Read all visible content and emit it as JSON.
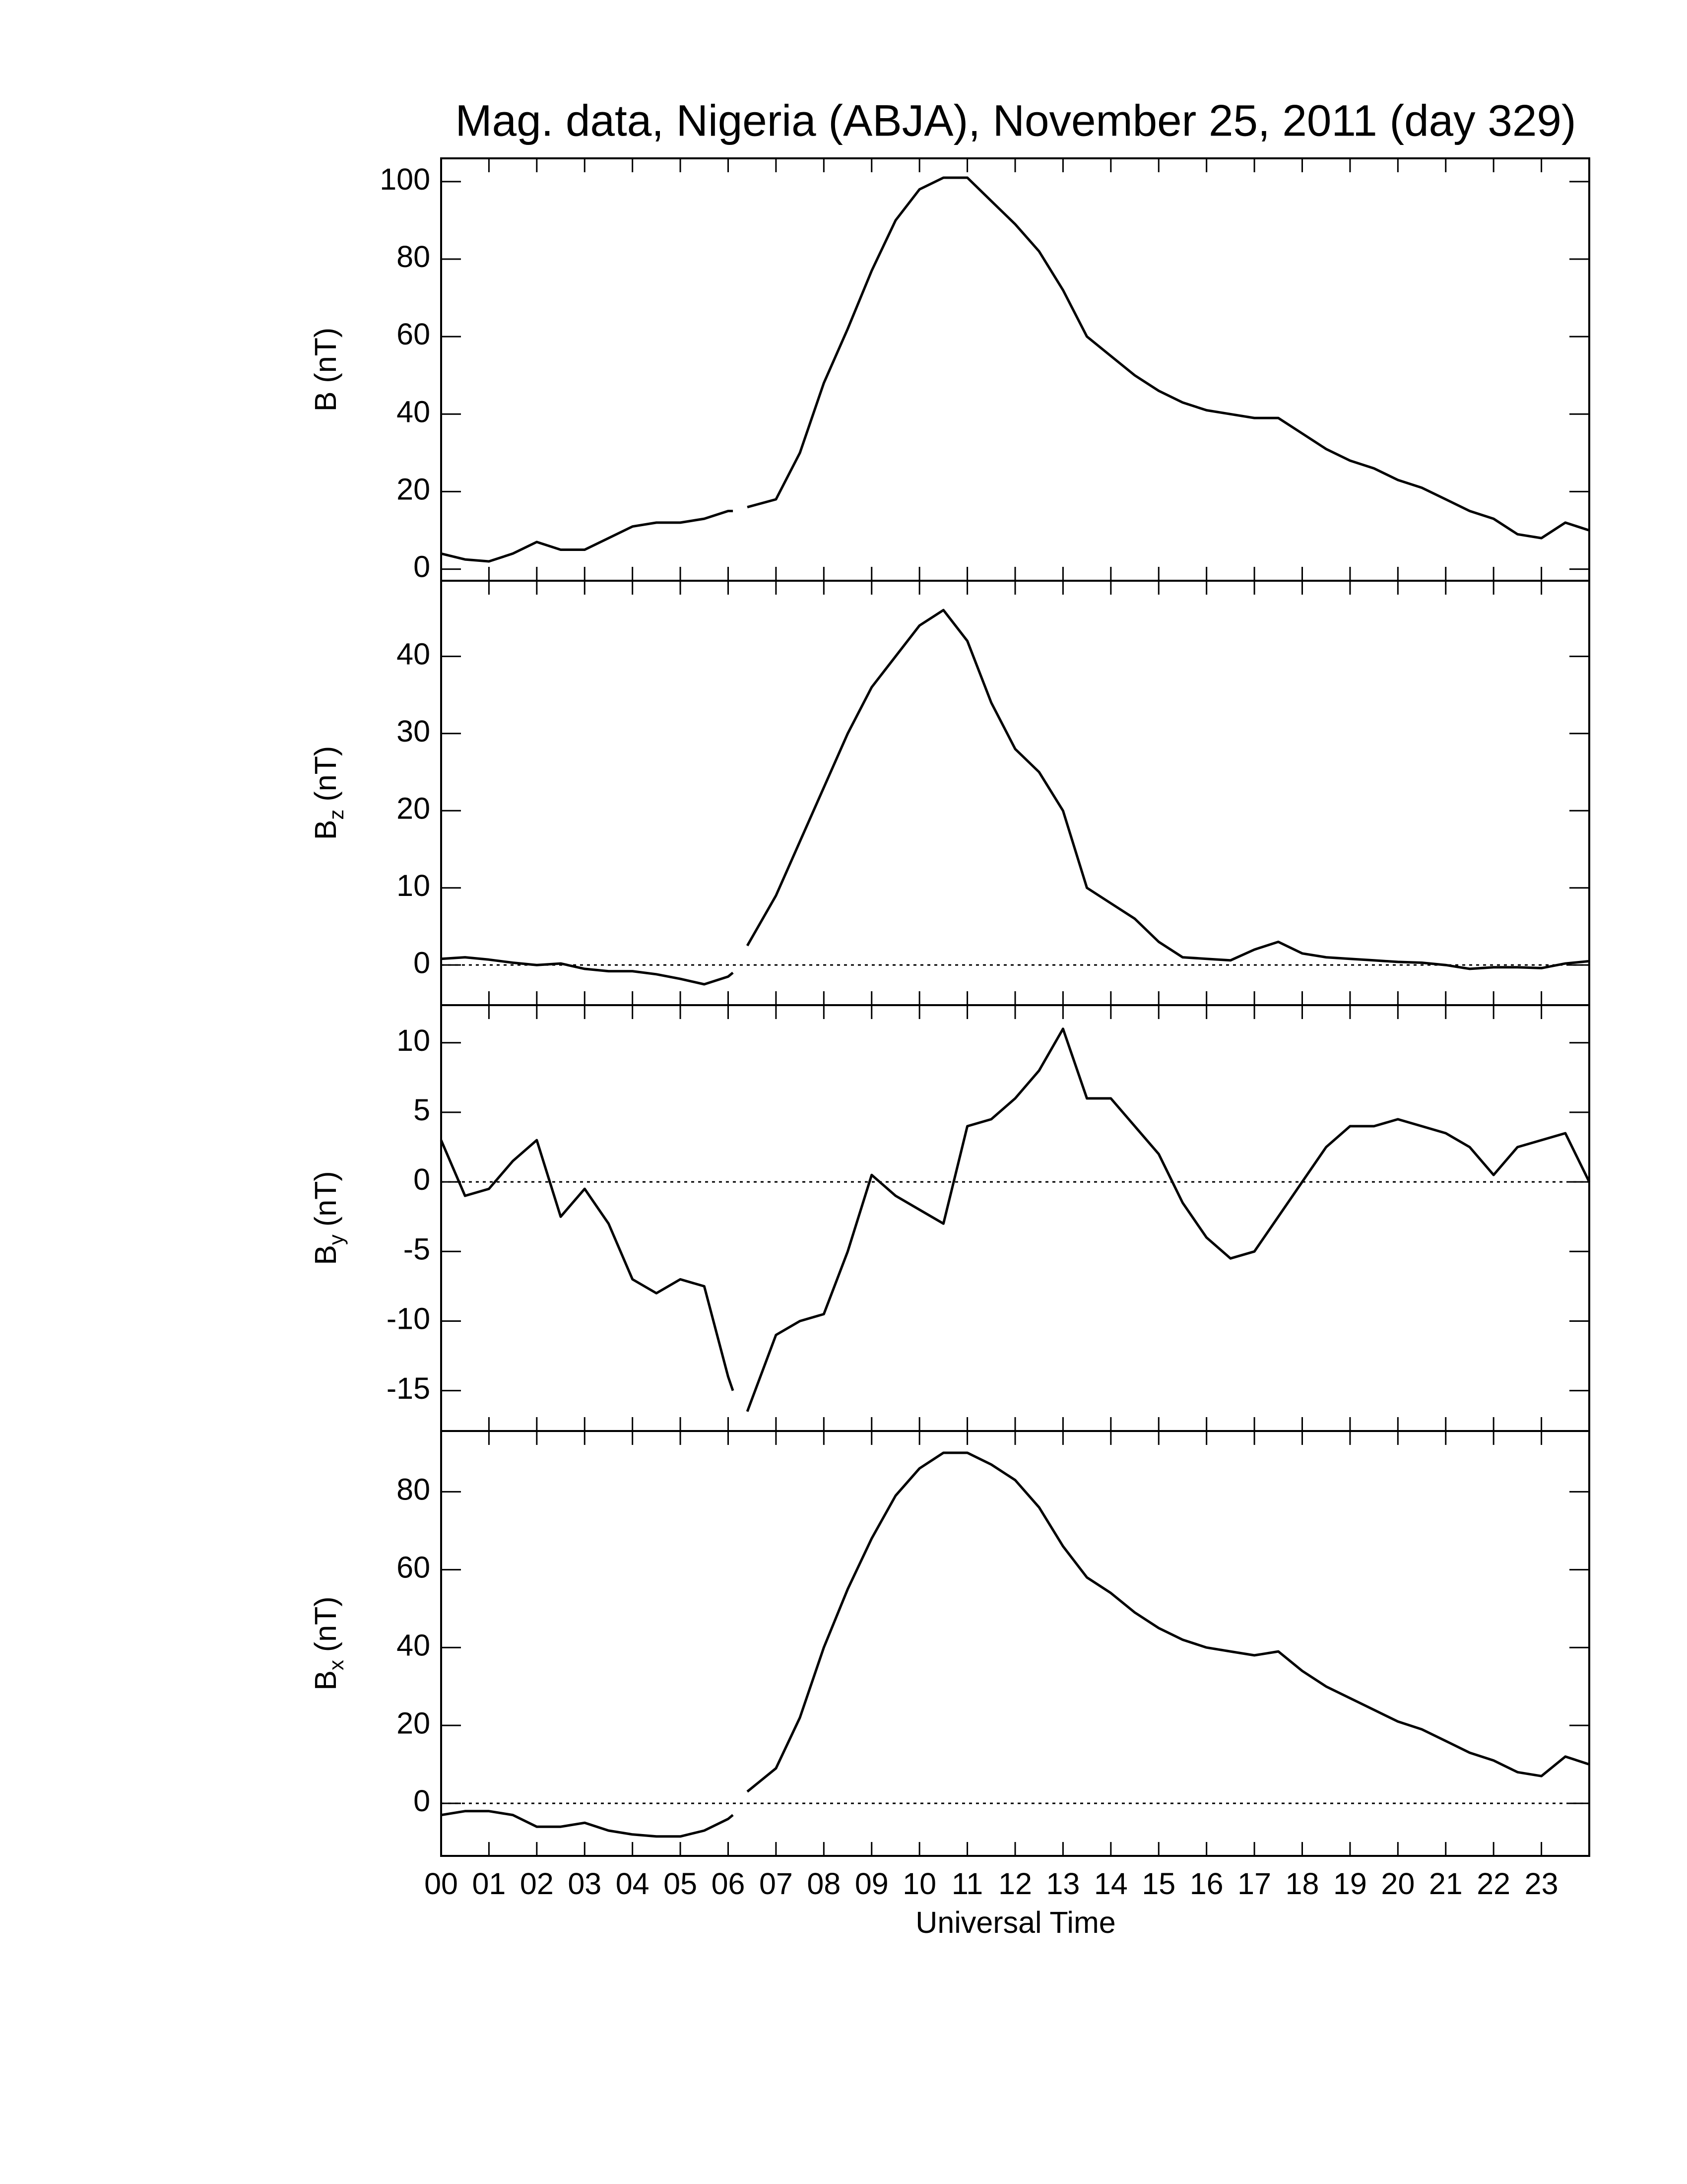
{
  "chart_data": {
    "title": "Mag. data, Nigeria (ABJA), November 25, 2011 (day 329)",
    "xlabel": "Universal Time",
    "xlim": [
      0,
      24
    ],
    "xticks": [
      {
        "value": 0,
        "label": "00"
      },
      {
        "value": 1,
        "label": "01"
      },
      {
        "value": 2,
        "label": "02"
      },
      {
        "value": 3,
        "label": "03"
      },
      {
        "value": 4,
        "label": "04"
      },
      {
        "value": 5,
        "label": "05"
      },
      {
        "value": 6,
        "label": "06"
      },
      {
        "value": 7,
        "label": "07"
      },
      {
        "value": 8,
        "label": "08"
      },
      {
        "value": 9,
        "label": "09"
      },
      {
        "value": 10,
        "label": "10"
      },
      {
        "value": 11,
        "label": "11"
      },
      {
        "value": 12,
        "label": "12"
      },
      {
        "value": 13,
        "label": "13"
      },
      {
        "value": 14,
        "label": "14"
      },
      {
        "value": 15,
        "label": "15"
      },
      {
        "value": 16,
        "label": "16"
      },
      {
        "value": 17,
        "label": "17"
      },
      {
        "value": 18,
        "label": "18"
      },
      {
        "value": 19,
        "label": "19"
      },
      {
        "value": 20,
        "label": "20"
      },
      {
        "value": 21,
        "label": "21"
      },
      {
        "value": 22,
        "label": "22"
      },
      {
        "value": 23,
        "label": "23"
      }
    ],
    "x": [
      0,
      0.5,
      1,
      1.5,
      2,
      2.5,
      3,
      3.5,
      4,
      4.5,
      5,
      5.5,
      6,
      6.1,
      6.25,
      6.4,
      7,
      7.5,
      8,
      8.5,
      9,
      9.5,
      10,
      10.5,
      11,
      11.5,
      12,
      12.5,
      13,
      13.5,
      14,
      14.5,
      15,
      15.5,
      16,
      16.5,
      17,
      17.5,
      18,
      18.5,
      19,
      19.5,
      20,
      20.5,
      21,
      21.5,
      22,
      22.5,
      23,
      23.5,
      24
    ],
    "panels": [
      {
        "type": "line",
        "ylabel": {
          "main": "B (nT)"
        },
        "color": "#000000",
        "zero_line": false,
        "ylim": [
          -3,
          106
        ],
        "yticks": [
          0,
          20,
          40,
          60,
          80,
          100
        ],
        "values": [
          4,
          2.5,
          2,
          4,
          7,
          5,
          5,
          8,
          11,
          12,
          12,
          13,
          15,
          15,
          null,
          16,
          18,
          30,
          48,
          62,
          77,
          90,
          98,
          101,
          101,
          95,
          89,
          82,
          72,
          60,
          55,
          50,
          46,
          43,
          41,
          40,
          39,
          39,
          35,
          31,
          28,
          26,
          23,
          21,
          18,
          15,
          13,
          9,
          8,
          12,
          10
        ]
      },
      {
        "type": "line",
        "ylabel": {
          "main": "B",
          "sub": "z",
          "unit": "(nT)"
        },
        "color": "#000000",
        "zero_line": true,
        "ylim": [
          -5.2,
          49.8
        ],
        "yticks": [
          0,
          10,
          20,
          30,
          40
        ],
        "values": [
          0.8,
          1,
          0.7,
          0.3,
          0,
          0.2,
          -0.5,
          -0.8,
          -0.8,
          -1.2,
          -1.8,
          -2.5,
          -1.5,
          -1,
          null,
          2.5,
          9,
          16,
          23,
          30,
          36,
          40,
          44,
          46,
          42,
          34,
          28,
          25,
          20,
          10,
          8,
          6,
          3,
          1,
          0.8,
          0.6,
          2,
          3,
          1.5,
          1,
          0.8,
          0.6,
          0.4,
          0.3,
          0,
          -0.5,
          -0.3,
          -0.3,
          -0.4,
          0.2,
          0.5
        ]
      },
      {
        "type": "line",
        "ylabel": {
          "main": "B",
          "sub": "y",
          "unit": "(nT)"
        },
        "color": "#000000",
        "zero_line": true,
        "ylim": [
          -17.9,
          12.7
        ],
        "yticks": [
          -15,
          -10,
          -5,
          0,
          5,
          10
        ],
        "values": [
          3,
          -1,
          -0.5,
          1.5,
          3,
          -2.5,
          -0.5,
          -3,
          -7,
          -8,
          -7,
          -7.5,
          -14,
          -15,
          null,
          -16.5,
          -11,
          -10,
          -9.5,
          -5,
          0.5,
          -1,
          -2,
          -3,
          4,
          4.5,
          6,
          8,
          11,
          6,
          6,
          4,
          2,
          -1.5,
          -4,
          -5.5,
          -5,
          -2.5,
          0,
          2.5,
          4,
          4,
          4.5,
          4,
          3.5,
          2.5,
          0.5,
          2.5,
          3,
          3.5,
          0
        ]
      },
      {
        "type": "line",
        "ylabel": {
          "main": "B",
          "sub": "x",
          "unit": "(nT)"
        },
        "color": "#000000",
        "zero_line": true,
        "ylim": [
          -13.5,
          95.6
        ],
        "yticks": [
          0,
          20,
          40,
          60,
          80
        ],
        "values": [
          -3,
          -2,
          -2,
          -3,
          -6,
          -6,
          -5,
          -7,
          -8,
          -8.5,
          -8.5,
          -7,
          -4,
          -3,
          null,
          3,
          9,
          22,
          40,
          55,
          68,
          79,
          86,
          90,
          90,
          87,
          83,
          76,
          66,
          58,
          54,
          49,
          45,
          42,
          40,
          39,
          38,
          39,
          34,
          30,
          27,
          24,
          21,
          19,
          16,
          13,
          11,
          8,
          7,
          12,
          10
        ]
      }
    ]
  }
}
